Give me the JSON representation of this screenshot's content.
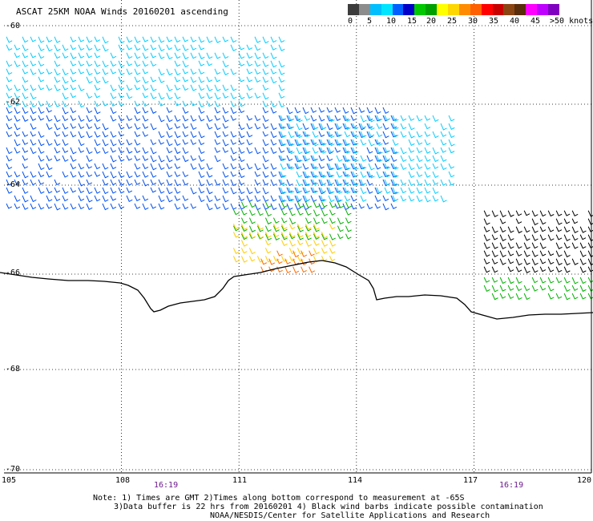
{
  "header": {
    "title": "ASCAT 25KM NOAA Winds 20160201 ascending"
  },
  "colorbar": {
    "colors": [
      "#3c3c3c",
      "#8c8c8c",
      "#00bfff",
      "#00e5ff",
      "#0060ff",
      "#0000c8",
      "#00c800",
      "#00a000",
      "#ffff00",
      "#ffd700",
      "#ff8c00",
      "#ff6000",
      "#ff0000",
      "#c80000",
      "#8b4513",
      "#5a2d0c",
      "#ff00ff",
      "#c000ff",
      "#8000c0"
    ],
    "labels": [
      "0",
      "5",
      "10",
      "15",
      "20",
      "25",
      "30",
      "35",
      "40",
      "45",
      ">50 knots"
    ]
  },
  "axes": {
    "lat_labels": [
      "-60",
      "-62",
      "-64",
      "-66",
      "-68",
      "-70"
    ],
    "lon_labels": [
      "105",
      "108",
      "111",
      "114",
      "117",
      "120"
    ]
  },
  "times": [
    "16:19",
    "16:19"
  ],
  "notes": {
    "line1": "Note: 1) Times are GMT 2)Times along bottom correspond to measurement at -65S",
    "line2": "3)Data buffer is 22 hrs from 20160201 4) Black wind barbs indicate possible contamination",
    "line3": "NOAA/NESDIS/Center for Satellite Applications and Research"
  },
  "chart_data": {
    "type": "map",
    "title": "ASCAT 25KM NOAA Winds 20160201 ascending",
    "lat_range": [
      -70,
      -60
    ],
    "lon_range": [
      105,
      120
    ],
    "wind_regions": [
      {
        "lat_range": [
          -60.2,
          -62.0
        ],
        "lon_range": [
          105.0,
          112.2
        ],
        "speed_knots": 7,
        "color": "#00ccff"
      },
      {
        "lat_range": [
          -62.0,
          -64.5
        ],
        "lon_range": [
          105.0,
          115.0
        ],
        "speed_knots": 12,
        "color": "#0050f0"
      },
      {
        "lat_range": [
          -62.2,
          -64.3
        ],
        "lon_range": [
          112.0,
          116.5
        ],
        "speed_knots": 8,
        "color": "#00ccff"
      },
      {
        "lat_range": [
          -64.3,
          -65.2
        ],
        "lon_range": [
          110.8,
          113.8
        ],
        "speed_knots": 18,
        "color": "#00b000"
      },
      {
        "lat_range": [
          -64.8,
          -65.8
        ],
        "lon_range": [
          110.8,
          113.5
        ],
        "speed_knots": 22,
        "color": "#ffcc00"
      },
      {
        "lat_range": [
          -65.4,
          -65.9
        ],
        "lon_range": [
          111.5,
          113.0
        ],
        "speed_knots": 26,
        "color": "#ff6a00"
      },
      {
        "lat_range": [
          -64.5,
          -66.0
        ],
        "lon_range": [
          117.2,
          120.0
        ],
        "speed_knots": 8,
        "color": "#000000"
      },
      {
        "lat_range": [
          -66.0,
          -66.6
        ],
        "lon_range": [
          117.2,
          120.0
        ],
        "speed_knots": 18,
        "color": "#00b000"
      }
    ]
  }
}
